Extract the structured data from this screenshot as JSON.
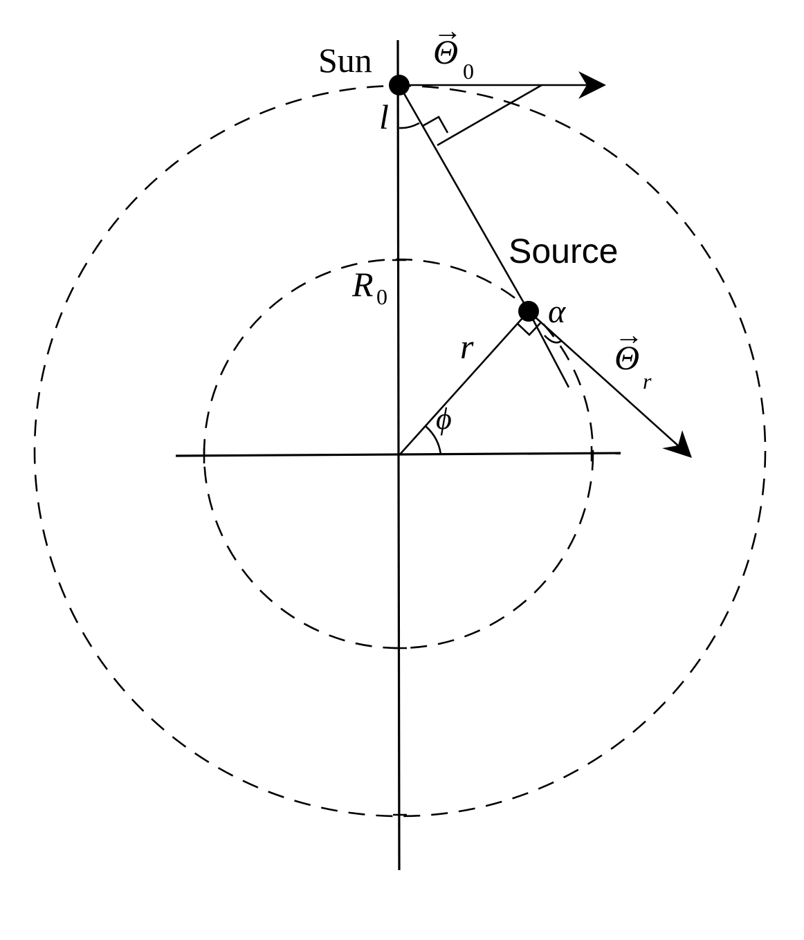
{
  "labels": {
    "sun": "Sun",
    "source": "Source",
    "theta": "Θ",
    "theta_0_sub": "0",
    "theta_r_sub": "r",
    "vector_arrow": "→",
    "l": "l",
    "alpha": "α",
    "r": "r",
    "phi": "ϕ",
    "R": "R",
    "R_sub": "0"
  }
}
